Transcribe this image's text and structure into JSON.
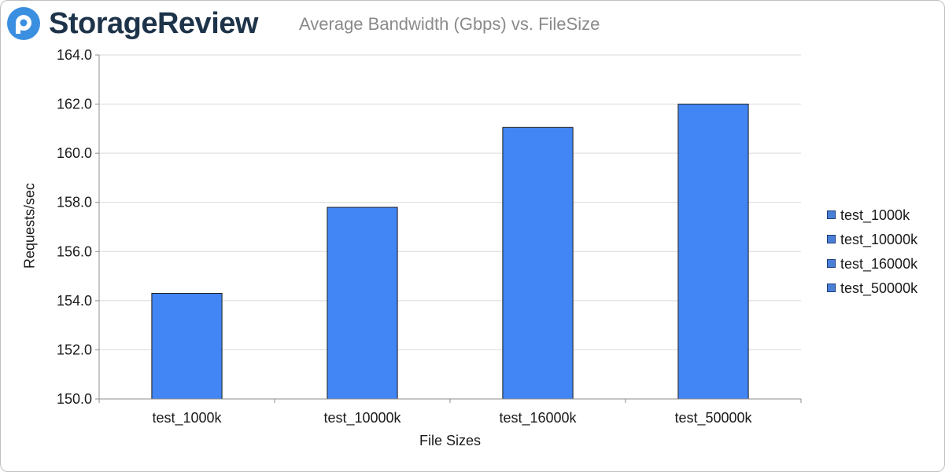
{
  "brand": {
    "name": "StorageReview",
    "logo_icon": "storagereview-logo-icon",
    "logo_color": "#3b8fe0"
  },
  "chart_data": {
    "type": "bar",
    "title": "Average Bandwidth (Gbps) vs. FileSize",
    "xlabel": "File Sizes",
    "ylabel": "Requests/sec",
    "categories": [
      "test_1000k",
      "test_10000k",
      "test_16000k",
      "test_50000k"
    ],
    "values": [
      154.3,
      157.8,
      161.05,
      162.0
    ],
    "ylim": [
      150.0,
      164.0
    ],
    "yticks": [
      "150.0",
      "152.0",
      "154.0",
      "156.0",
      "158.0",
      "160.0",
      "162.0",
      "164.0"
    ],
    "grid": true,
    "legend_position": "right",
    "legend": [
      "test_1000k",
      "test_10000k",
      "test_16000k",
      "test_50000k"
    ],
    "colors": {
      "bar_fill": "#4285f4",
      "bar_stroke": "#1a1a1a",
      "gridline": "#d9d9d9",
      "axis": "#8c8c8c",
      "legend_fill": "#4a7fd8"
    }
  }
}
